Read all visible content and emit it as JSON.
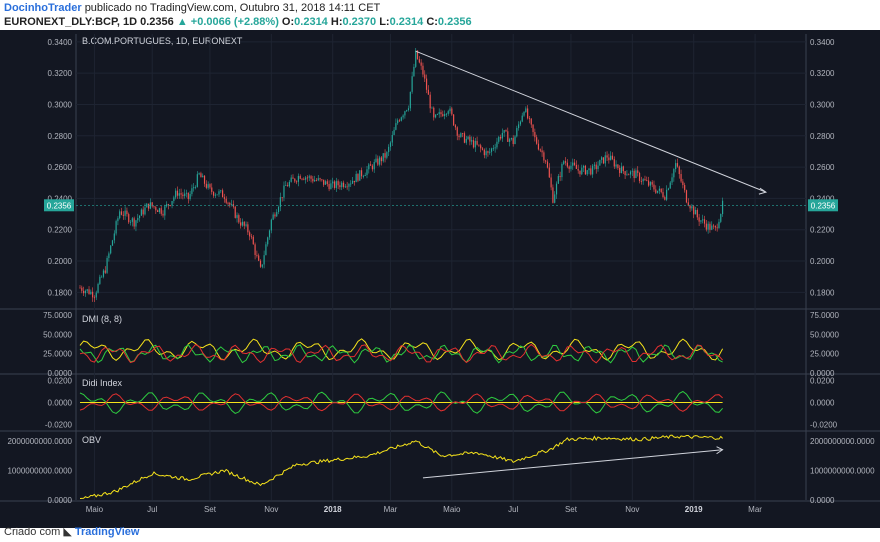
{
  "header": {
    "author": "DocinhoTrader",
    "published": "publicado no TradingView.com, Outubro 31, 2018 14:11 CET",
    "symbol": "EURONEXT_DLY:BCP, 1D",
    "last": "0.2356",
    "change": "▲ +0.0066 (+2.88%)",
    "o_label": "O:",
    "o": "0.2314",
    "h_label": "H:",
    "h": "0.2370",
    "l_label": "L:",
    "l": "0.2314",
    "c_label": "C:",
    "c": "0.2356"
  },
  "footer": {
    "created": "Criado com",
    "brand": "TradingView"
  },
  "colors": {
    "background": "#131722",
    "up": "#26a69a",
    "down": "#ef5350",
    "yellow": "#f5e21b",
    "green": "#2ecc40",
    "red": "#e23030",
    "grid": "#1e2432",
    "axis_text": "#b2b5be",
    "trendline": "#d1d4dc"
  },
  "chart_data": [
    {
      "type": "candlestick",
      "title": "B.COM.PORTUGUES, 1D, EURONEXT",
      "ylim": [
        0.17,
        0.345
      ],
      "y_ticks": [
        "0.3400",
        "0.3200",
        "0.3000",
        "0.2800",
        "0.2600",
        "0.2400",
        "0.2200",
        "0.2000",
        "0.1800"
      ],
      "y_tick_values": [
        0.34,
        0.32,
        0.3,
        0.28,
        0.26,
        0.24,
        0.22,
        0.2,
        0.18
      ],
      "x_ticks": [
        "Maio",
        "Jul",
        "Set",
        "Nov",
        "2018",
        "Mar",
        "Maio",
        "Jul",
        "Set",
        "Nov",
        "2019",
        "Mar"
      ],
      "last_price_label": "0.2356",
      "last_price": 0.2356,
      "close_path": [
        [
          0,
          0.183
        ],
        [
          8,
          0.179
        ],
        [
          14,
          0.195
        ],
        [
          22,
          0.232
        ],
        [
          30,
          0.225
        ],
        [
          38,
          0.236
        ],
        [
          46,
          0.232
        ],
        [
          54,
          0.244
        ],
        [
          60,
          0.24
        ],
        [
          66,
          0.255
        ],
        [
          72,
          0.245
        ],
        [
          80,
          0.242
        ],
        [
          88,
          0.226
        ],
        [
          94,
          0.218
        ],
        [
          100,
          0.194
        ],
        [
          106,
          0.226
        ],
        [
          114,
          0.248
        ],
        [
          122,
          0.255
        ],
        [
          130,
          0.252
        ],
        [
          140,
          0.248
        ],
        [
          150,
          0.251
        ],
        [
          160,
          0.259
        ],
        [
          170,
          0.268
        ],
        [
          176,
          0.29
        ],
        [
          182,
          0.3
        ],
        [
          186,
          0.332
        ],
        [
          190,
          0.32
        ],
        [
          196,
          0.29
        ],
        [
          204,
          0.298
        ],
        [
          210,
          0.28
        ],
        [
          218,
          0.275
        ],
        [
          226,
          0.268
        ],
        [
          234,
          0.282
        ],
        [
          240,
          0.276
        ],
        [
          246,
          0.298
        ],
        [
          252,
          0.278
        ],
        [
          258,
          0.265
        ],
        [
          262,
          0.24
        ],
        [
          268,
          0.264
        ],
        [
          276,
          0.258
        ],
        [
          284,
          0.258
        ],
        [
          292,
          0.267
        ],
        [
          300,
          0.258
        ],
        [
          308,
          0.255
        ],
        [
          316,
          0.248
        ],
        [
          324,
          0.242
        ],
        [
          330,
          0.262
        ],
        [
          336,
          0.24
        ],
        [
          342,
          0.228
        ],
        [
          348,
          0.222
        ],
        [
          352,
          0.22
        ],
        [
          356,
          0.2356
        ]
      ],
      "trendline_price": [
        [
          186,
          0.334
        ],
        [
          380,
          0.244
        ]
      ],
      "series": [
        {
          "name": "",
          "values": []
        }
      ]
    },
    {
      "type": "line",
      "title": "DMI (8, 8)",
      "y_ticks": [
        "75.0000",
        "50.0000",
        "25.0000",
        "0.0000"
      ],
      "y_tick_values": [
        75,
        50,
        25,
        0
      ]
    },
    {
      "type": "line",
      "title": "Didi Index",
      "y_ticks": [
        "0.0200",
        "0.0000",
        "-0.0200"
      ],
      "y_tick_values": [
        0.02,
        0,
        -0.02
      ]
    },
    {
      "type": "line",
      "title": "OBV",
      "y_ticks": [
        "2000000000.0000",
        "1000000000.0000",
        "0.0000"
      ],
      "y_tick_values": [
        2000000000,
        1000000000,
        0
      ],
      "values_path": [
        [
          0,
          20000000.0
        ],
        [
          20,
          300000000.0
        ],
        [
          40,
          900000000.0
        ],
        [
          60,
          700000000.0
        ],
        [
          80,
          1000000000.0
        ],
        [
          100,
          500000000.0
        ],
        [
          120,
          1200000000.0
        ],
        [
          140,
          1350000000.0
        ],
        [
          160,
          1500000000.0
        ],
        [
          176,
          1800000000.0
        ],
        [
          186,
          2000000000.0
        ],
        [
          200,
          1500000000.0
        ],
        [
          220,
          1600000000.0
        ],
        [
          240,
          1300000000.0
        ],
        [
          260,
          1700000000.0
        ],
        [
          270,
          2050000000.0
        ],
        [
          290,
          2100000000.0
        ],
        [
          310,
          2050000000.0
        ],
        [
          330,
          2150000000.0
        ],
        [
          356,
          2100000000.0
        ]
      ]
    }
  ]
}
